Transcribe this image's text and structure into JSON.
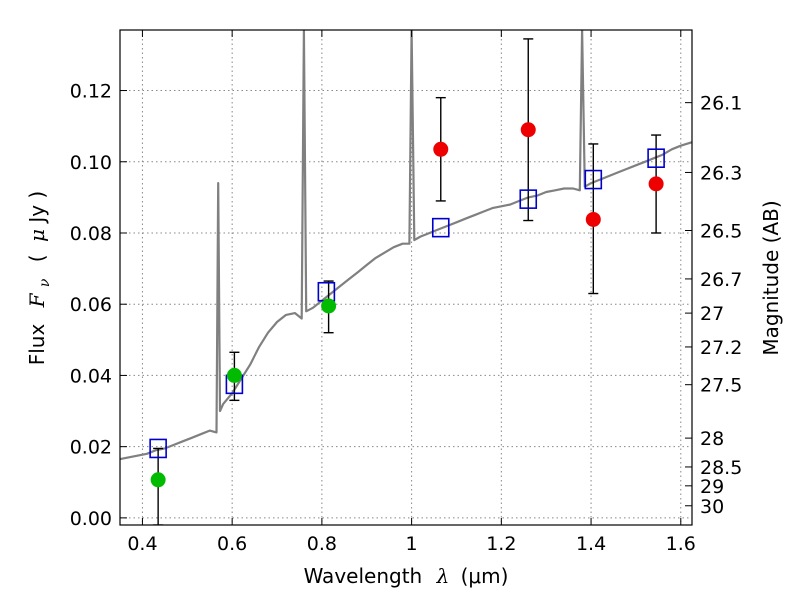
{
  "chart_data": {
    "type": "scatter",
    "title": "",
    "xlabel": "Wavelength",
    "xlabel_symbol": "λ",
    "xlabel_unit": "(μm)",
    "ylabel": "Flux",
    "ylabel_symbol": "F",
    "ylabel_subscript": "ν",
    "ylabel_unit_open": "(",
    "ylabel_unit_mu": "μ",
    "ylabel_unit_rest": "Jy )",
    "y2label": "Magnitude (AB)",
    "xlim": [
      0.35,
      1.625
    ],
    "ylim": [
      -0.002,
      0.137
    ],
    "grid": true,
    "x_ticks": [
      {
        "value": 0.4,
        "label": "0.4"
      },
      {
        "value": 0.6,
        "label": "0.6"
      },
      {
        "value": 0.8,
        "label": "0.8"
      },
      {
        "value": 1.0,
        "label": "1"
      },
      {
        "value": 1.2,
        "label": "1.2"
      },
      {
        "value": 1.4,
        "label": "1.4"
      },
      {
        "value": 1.6,
        "label": "1.6"
      }
    ],
    "y_ticks": [
      {
        "value": 0.0,
        "label": "0.00"
      },
      {
        "value": 0.02,
        "label": "0.02"
      },
      {
        "value": 0.04,
        "label": "0.04"
      },
      {
        "value": 0.06,
        "label": "0.06"
      },
      {
        "value": 0.08,
        "label": "0.08"
      },
      {
        "value": 0.1,
        "label": "0.10"
      },
      {
        "value": 0.12,
        "label": "0.12"
      }
    ],
    "y2_ticks": [
      {
        "flux": 0.1166,
        "label": "26.1"
      },
      {
        "flux": 0.097,
        "label": "26.3"
      },
      {
        "flux": 0.0807,
        "label": "26.5"
      },
      {
        "flux": 0.0671,
        "label": "26.7"
      },
      {
        "flux": 0.0575,
        "label": "27"
      },
      {
        "flux": 0.048,
        "label": "27.2"
      },
      {
        "flux": 0.0374,
        "label": "27.5"
      },
      {
        "flux": 0.0224,
        "label": "28"
      },
      {
        "flux": 0.0143,
        "label": "28.5"
      },
      {
        "flux": 0.009,
        "label": "29"
      },
      {
        "flux": 0.0034,
        "label": "30"
      }
    ],
    "spectrum": {
      "color": "#808080",
      "points": [
        [
          0.35,
          0.0165
        ],
        [
          0.37,
          0.017
        ],
        [
          0.39,
          0.0175
        ],
        [
          0.41,
          0.018
        ],
        [
          0.43,
          0.019
        ],
        [
          0.45,
          0.0195
        ],
        [
          0.47,
          0.0205
        ],
        [
          0.49,
          0.0215
        ],
        [
          0.51,
          0.0225
        ],
        [
          0.53,
          0.0235
        ],
        [
          0.55,
          0.0245
        ],
        [
          0.565,
          0.024
        ],
        [
          0.569,
          0.094
        ],
        [
          0.573,
          0.03
        ],
        [
          0.58,
          0.032
        ],
        [
          0.6,
          0.035
        ],
        [
          0.62,
          0.039
        ],
        [
          0.64,
          0.043
        ],
        [
          0.66,
          0.048
        ],
        [
          0.68,
          0.052
        ],
        [
          0.7,
          0.055
        ],
        [
          0.72,
          0.057
        ],
        [
          0.74,
          0.0575
        ],
        [
          0.755,
          0.056
        ],
        [
          0.76,
          0.137
        ],
        [
          0.765,
          0.058
        ],
        [
          0.78,
          0.059
        ],
        [
          0.8,
          0.061
        ],
        [
          0.82,
          0.063
        ],
        [
          0.84,
          0.065
        ],
        [
          0.86,
          0.067
        ],
        [
          0.88,
          0.069
        ],
        [
          0.9,
          0.071
        ],
        [
          0.92,
          0.073
        ],
        [
          0.94,
          0.0745
        ],
        [
          0.96,
          0.076
        ],
        [
          0.98,
          0.077
        ],
        [
          0.995,
          0.077
        ],
        [
          1.0,
          0.137
        ],
        [
          1.006,
          0.078
        ],
        [
          1.02,
          0.079
        ],
        [
          1.04,
          0.08
        ],
        [
          1.06,
          0.081
        ],
        [
          1.08,
          0.082
        ],
        [
          1.1,
          0.083
        ],
        [
          1.12,
          0.084
        ],
        [
          1.14,
          0.085
        ],
        [
          1.16,
          0.086
        ],
        [
          1.18,
          0.087
        ],
        [
          1.2,
          0.0875
        ],
        [
          1.22,
          0.088
        ],
        [
          1.24,
          0.089
        ],
        [
          1.26,
          0.09
        ],
        [
          1.28,
          0.0905
        ],
        [
          1.3,
          0.0915
        ],
        [
          1.32,
          0.092
        ],
        [
          1.34,
          0.0925
        ],
        [
          1.36,
          0.0925
        ],
        [
          1.375,
          0.092
        ],
        [
          1.38,
          0.137
        ],
        [
          1.386,
          0.093
        ],
        [
          1.4,
          0.094
        ],
        [
          1.42,
          0.095
        ],
        [
          1.44,
          0.096
        ],
        [
          1.46,
          0.097
        ],
        [
          1.48,
          0.098
        ],
        [
          1.5,
          0.099
        ],
        [
          1.52,
          0.1
        ],
        [
          1.54,
          0.101
        ],
        [
          1.56,
          0.102
        ],
        [
          1.58,
          0.1035
        ],
        [
          1.6,
          0.1045
        ],
        [
          1.625,
          0.1055
        ]
      ]
    },
    "series": [
      {
        "marker": "square",
        "color": "#0000cc",
        "points": [
          {
            "x": 0.435,
            "y": 0.0195
          },
          {
            "x": 0.605,
            "y": 0.0375
          },
          {
            "x": 0.81,
            "y": 0.0635
          },
          {
            "x": 1.065,
            "y": 0.0815
          },
          {
            "x": 1.26,
            "y": 0.0895
          },
          {
            "x": 1.405,
            "y": 0.095
          },
          {
            "x": 1.545,
            "y": 0.101
          }
        ]
      },
      {
        "marker": "circle",
        "color": "#00bb00",
        "points": [
          {
            "x": 0.435,
            "y": 0.0107,
            "yerr_low": -0.002,
            "yerr_high": 0.0195
          },
          {
            "x": 0.605,
            "y": 0.04,
            "yerr_low": 0.033,
            "yerr_high": 0.0465
          },
          {
            "x": 0.815,
            "y": 0.0595,
            "yerr_low": 0.052,
            "yerr_high": 0.0665
          }
        ]
      },
      {
        "marker": "circle",
        "color": "#ee0000",
        "points": [
          {
            "x": 1.065,
            "y": 0.1035,
            "yerr_low": 0.089,
            "yerr_high": 0.118
          },
          {
            "x": 1.26,
            "y": 0.109,
            "yerr_low": 0.0835,
            "yerr_high": 0.1345
          },
          {
            "x": 1.405,
            "y": 0.0838,
            "yerr_low": 0.063,
            "yerr_high": 0.105
          },
          {
            "x": 1.545,
            "y": 0.0938,
            "yerr_low": 0.08,
            "yerr_high": 0.1075
          }
        ]
      }
    ]
  }
}
